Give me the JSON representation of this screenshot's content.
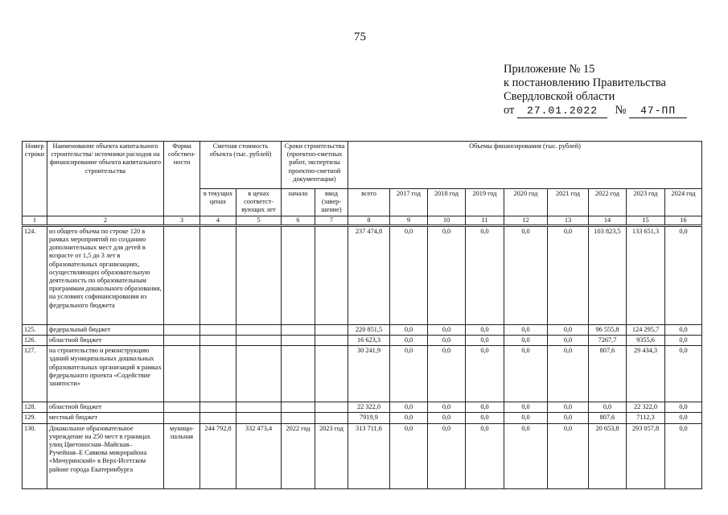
{
  "page_number": "75",
  "appendix": {
    "line1": "Приложение № 15",
    "line2": "к постановлению Правительства",
    "line3": "Свердловской области",
    "date_prefix": "от",
    "date": "27.01.2022",
    "number_prefix": "№",
    "number": "47-ПП"
  },
  "table": {
    "headers": {
      "row_number": "Номер строки",
      "name": "Наименование объекта капитального строительства/ источники расходов на финансирование объекта капитального строительства",
      "ownership": "Форма собствен-ности",
      "cost": {
        "title": "Сметная стоимость объекта (тыс. рублей)",
        "sub": [
          "в текущих ценах",
          "в ценах соответст-вующих лет"
        ]
      },
      "terms": {
        "title": "Сроки строительства (проектно-сметных работ, экспертизы проектно-сметной документации)",
        "sub": [
          "начало",
          "ввод (завер-шение)"
        ]
      },
      "funding": {
        "title": "Объемы финансирования (тыс. рублей)",
        "sub": [
          "всего",
          "2017 год",
          "2018 год",
          "2019 год",
          "2020 год",
          "2021 год",
          "2022 год",
          "2023 год",
          "2024 год"
        ]
      }
    },
    "column_numbers": [
      1,
      2,
      3,
      4,
      5,
      6,
      7,
      8,
      9,
      10,
      11,
      12,
      13,
      14,
      15,
      16
    ],
    "rows": [
      [
        "124.",
        "из общего объема по строке 120 в рамках мероприятий по созданию дополнительных мест для детей в возрасте от 1,5 до 3 лет в образовательных организациях, осуществляющих образовательную деятельность по образовательным программам дошкольного образования, на условиях софинансирования из федерального бюджета",
        null,
        null,
        null,
        null,
        null,
        "237 474,8",
        "0,0",
        "0,0",
        "0,0",
        "0,0",
        "0,0",
        "103 823,5",
        "133 651,3",
        "0,0"
      ],
      [
        "125.",
        "федеральный бюджет",
        null,
        null,
        null,
        null,
        null,
        "220 851,5",
        "0,0",
        "0,0",
        "0,0",
        "0,0",
        "0,0",
        "96 555,8",
        "124 295,7",
        "0,0"
      ],
      [
        "126.",
        "областной бюджет",
        null,
        null,
        null,
        null,
        null,
        "16 623,3",
        "0,0",
        "0,0",
        "0,0",
        "0,0",
        "0,0",
        "7267,7",
        "9355,6",
        "0,0"
      ],
      [
        "127.",
        "на строительство и реконструкцию зданий муниципальных дошкольных образовательных организаций в рамках федерального проекта «Содействие занятости»",
        null,
        null,
        null,
        null,
        null,
        "30 241,9",
        "0,0",
        "0,0",
        "0,0",
        "0,0",
        "0,0",
        "807,6",
        "29 434,3",
        "0,0"
      ],
      [
        "128.",
        "областной бюджет",
        null,
        null,
        null,
        null,
        null,
        "22 322,0",
        "0,0",
        "0,0",
        "0,0",
        "0,0",
        "0,0",
        "0,0",
        "22 322,0",
        "0,0"
      ],
      [
        "129.",
        "местный бюджет",
        null,
        null,
        null,
        null,
        null,
        "7919,9",
        "0,0",
        "0,0",
        "0,0",
        "0,0",
        "0,0",
        "807,6",
        "7112,3",
        "0,0"
      ],
      [
        "130.",
        "Дошкольное образовательное учреждение на 250 мест в границах улиц Цветоносная–Майская–Ручейная–Е Савкова микрорайона «Мичуринский» в Верх-Исетском районе города Екатеринбурга",
        "муници-пальная",
        "244 792,8",
        "332 473,4",
        "2022 год",
        "2023 год",
        "313 711,6",
        "0,0",
        "0,0",
        "0,0",
        "0,0",
        "0,0",
        "20 653,8",
        "293 057,8",
        "0,0"
      ]
    ]
  }
}
